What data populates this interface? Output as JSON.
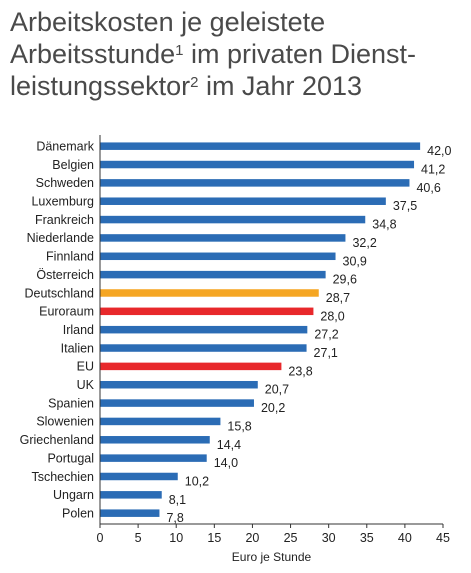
{
  "title": {
    "line1": "Arbeitskosten je geleistete",
    "line2_a": "Arbeitsstunde",
    "line2_sup": "1",
    "line2_b": " im privaten Dienst-",
    "line3_a": "leistungssektor",
    "line3_sup": "2",
    "line3_b": " im Jahr 2013"
  },
  "chart_data": {
    "type": "bar",
    "orientation": "horizontal",
    "categories": [
      "Dänemark",
      "Belgien",
      "Schweden",
      "Luxemburg",
      "Frankreich",
      "Niederlande",
      "Finnland",
      "Österreich",
      "Deutschland",
      "Euroraum",
      "Irland",
      "Italien",
      "EU",
      "UK",
      "Spanien",
      "Slowenien",
      "Griechenland",
      "Portugal",
      "Tschechien",
      "Ungarn",
      "Polen"
    ],
    "values": [
      42.0,
      41.2,
      40.6,
      37.5,
      34.8,
      32.2,
      30.9,
      29.6,
      28.7,
      28.0,
      27.2,
      27.1,
      23.8,
      20.7,
      20.2,
      15.8,
      14.4,
      14.0,
      10.2,
      8.1,
      7.8
    ],
    "value_labels": [
      "42,0",
      "41,2",
      "40,6",
      "37,5",
      "34,8",
      "32,2",
      "30,9",
      "29,6",
      "28,7",
      "28,0",
      "27,2",
      "27,1",
      "23,8",
      "20,7",
      "20,2",
      "15,8",
      "14,4",
      "14,0",
      "10,2",
      "8,1",
      "7,8"
    ],
    "colors": [
      "#2b6cb5",
      "#2b6cb5",
      "#2b6cb5",
      "#2b6cb5",
      "#2b6cb5",
      "#2b6cb5",
      "#2b6cb5",
      "#2b6cb5",
      "#f5a623",
      "#e8282b",
      "#2b6cb5",
      "#2b6cb5",
      "#e8282b",
      "#2b6cb5",
      "#2b6cb5",
      "#2b6cb5",
      "#2b6cb5",
      "#2b6cb5",
      "#2b6cb5",
      "#2b6cb5",
      "#2b6cb5"
    ],
    "xlabel": "Euro je Stunde",
    "xlim": [
      0,
      45
    ],
    "xticks": [
      0,
      5,
      10,
      15,
      20,
      25,
      30,
      35,
      40,
      45
    ],
    "grid": false,
    "legend": "none"
  }
}
